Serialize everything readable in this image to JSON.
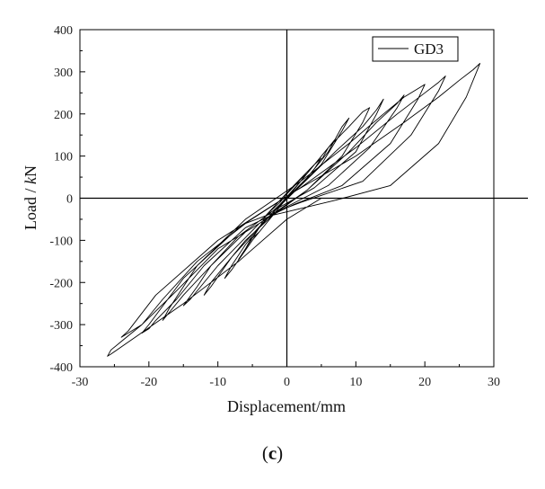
{
  "chart_data": {
    "type": "line",
    "title": "",
    "xlabel": "Displacement/mm",
    "ylabel_prefix": "Load / ",
    "ylabel_unit_italic": "k",
    "ylabel_unit_rest": "N",
    "xlim": [
      -30,
      30
    ],
    "ylim": [
      -400,
      400
    ],
    "xticks": [
      -30,
      -20,
      -10,
      0,
      10,
      20,
      30
    ],
    "yticks": [
      -400,
      -300,
      -200,
      -100,
      0,
      100,
      200,
      300,
      400
    ],
    "grid": false,
    "legend_position": "top-right",
    "series": [
      {
        "name": "GD3",
        "color": "#000000",
        "x": [
          0,
          1,
          2,
          3,
          2,
          0,
          -1,
          -2,
          -3,
          -2,
          0,
          2,
          4,
          5,
          4,
          1,
          -1,
          -3,
          -4,
          -5,
          -4,
          -2,
          0,
          3,
          5,
          6,
          7,
          6,
          3,
          0,
          -3,
          -5,
          -6,
          -7,
          -6,
          -4,
          -1,
          2,
          5,
          7,
          8,
          9,
          8,
          5,
          1,
          -3,
          -6,
          -8,
          -9,
          -8,
          -5,
          -1,
          3,
          6,
          9,
          11,
          12,
          11,
          8,
          3,
          -2,
          -6,
          -9,
          -11,
          -12,
          -11,
          -8,
          -3,
          2,
          7,
          11,
          13,
          14,
          13,
          10,
          4,
          -2,
          -7,
          -11,
          -13,
          -15,
          -14,
          -10,
          -4,
          3,
          9,
          13,
          16,
          17,
          16,
          12,
          6,
          0,
          -6,
          -11,
          -15,
          -17,
          -18,
          -17,
          -13,
          -6,
          2,
          9,
          14,
          17,
          19,
          20,
          19,
          15,
          8,
          1,
          -6,
          -12,
          -16,
          -19,
          -20,
          -21,
          -20,
          -15,
          -7,
          2,
          10,
          16,
          20,
          22,
          23,
          22,
          18,
          11,
          2,
          -6,
          -13,
          -18,
          -21,
          -23,
          -24,
          -23,
          -19,
          -10,
          1,
          10,
          17,
          22,
          25,
          27,
          28,
          27.5,
          26,
          22,
          15,
          7,
          -2,
          -10,
          -16,
          -21,
          -24,
          -25.5,
          -26,
          -25.5,
          -22,
          -15,
          -7,
          0,
          5
        ],
        "y": [
          0,
          20,
          40,
          60,
          45,
          10,
          -10,
          -25,
          -40,
          -30,
          0,
          30,
          70,
          95,
          80,
          30,
          -5,
          -40,
          -70,
          -95,
          -80,
          -40,
          0,
          50,
          90,
          120,
          140,
          110,
          50,
          0,
          -50,
          -90,
          -120,
          -145,
          -120,
          -70,
          -15,
          40,
          100,
          140,
          170,
          190,
          160,
          80,
          15,
          -50,
          -110,
          -160,
          -190,
          -170,
          -100,
          -20,
          60,
          120,
          170,
          205,
          215,
          180,
          100,
          20,
          -40,
          -100,
          -160,
          -200,
          -230,
          -210,
          -140,
          -50,
          30,
          110,
          170,
          210,
          235,
          200,
          110,
          25,
          -30,
          -90,
          -160,
          -210,
          -255,
          -240,
          -160,
          -60,
          20,
          110,
          180,
          225,
          245,
          215,
          120,
          30,
          -20,
          -80,
          -160,
          -230,
          -270,
          -290,
          -260,
          -160,
          -50,
          40,
          130,
          200,
          240,
          260,
          270,
          235,
          130,
          30,
          -15,
          -70,
          -160,
          -240,
          -290,
          -310,
          -320,
          -300,
          -190,
          -70,
          25,
          120,
          200,
          250,
          275,
          290,
          255,
          150,
          40,
          -10,
          -60,
          -150,
          -240,
          -300,
          -320,
          -330,
          -315,
          -230,
          -100,
          15,
          100,
          180,
          240,
          280,
          305,
          320,
          300,
          240,
          130,
          30,
          -5,
          -40,
          -120,
          -220,
          -300,
          -340,
          -360,
          -375,
          -370,
          -330,
          -250,
          -150,
          -50,
          0
        ]
      }
    ]
  },
  "caption": {
    "open": "(",
    "letter": "c",
    "close": ")"
  }
}
